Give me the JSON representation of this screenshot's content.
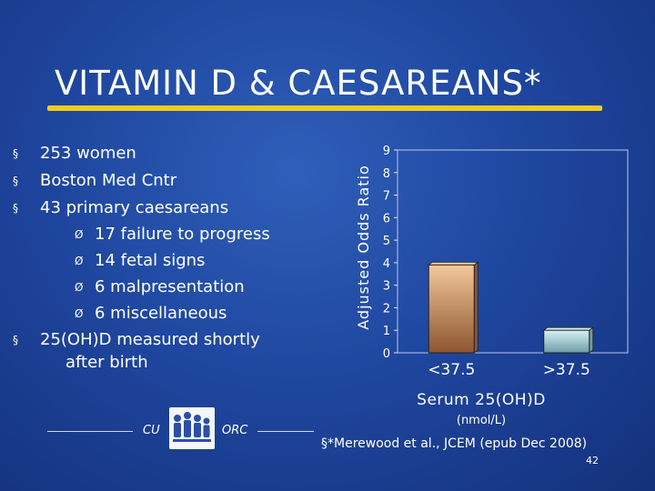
{
  "slide": {
    "title": "VITAMIN D & CAESAREANS*",
    "bullets": [
      {
        "marker": "§",
        "text": "253 women"
      },
      {
        "marker": "§",
        "text": "Boston Med Cntr"
      },
      {
        "marker": "§",
        "text": "43 primary caesareans"
      },
      {
        "marker": "Ø",
        "text": "17 failure to progress"
      },
      {
        "marker": "Ø",
        "text": "14 fetal signs"
      },
      {
        "marker": "Ø",
        "text": "6 malpresentation"
      },
      {
        "marker": "Ø",
        "text": "6 miscellaneous"
      },
      {
        "marker": "§",
        "text": "25(OH)D measured shortly"
      },
      {
        "marker": "",
        "text": "after birth"
      }
    ],
    "citation": "§*Merewood et al., JCEM (epub Dec 2008)",
    "page_number": "42",
    "logo_left": "CU",
    "logo_right": "ORC"
  },
  "chart_data": {
    "type": "bar",
    "categories": [
      "<37.5",
      ">37.5"
    ],
    "values": [
      3.9,
      1
    ],
    "ylabel": "Adjusted Odds Ratio",
    "xlabel": "Serum 25(OH)D",
    "xlabel_unit": "(nmol/L)",
    "ylim": [
      0,
      9
    ],
    "yticks": [
      0,
      1,
      2,
      3,
      4,
      5,
      6,
      7,
      8,
      9
    ],
    "grid": false,
    "bar_colors": [
      "#f3c89a",
      "#d7f1f6"
    ],
    "bar_shade_colors": [
      "#8c5530",
      "#6d9ca6"
    ]
  }
}
